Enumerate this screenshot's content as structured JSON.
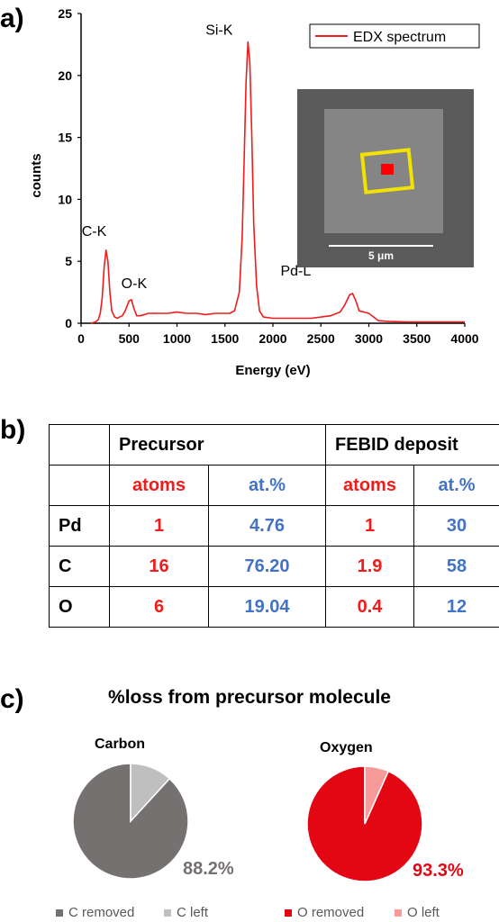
{
  "panel_labels": {
    "a": "a)",
    "b": "b)",
    "c": "c)"
  },
  "colors": {
    "red": "#ee1c1c",
    "blue": "#4472c4",
    "c_removed": "#767171",
    "c_left": "#bfbfbf",
    "o_removed": "#e30613",
    "o_left": "#f79a9a"
  },
  "chart_data": [
    {
      "type": "line",
      "xlabel": "Energy (eV)",
      "ylabel": "counts",
      "xlim": [
        0,
        4000
      ],
      "ylim": [
        0,
        25
      ],
      "x_ticks": [
        0,
        500,
        1000,
        1500,
        2000,
        2500,
        3000,
        3500,
        4000
      ],
      "y_ticks": [
        0,
        5,
        10,
        15,
        20,
        25
      ],
      "legend": "top-right",
      "series": [
        {
          "name": "EDX spectrum",
          "color": "#ee1c1c",
          "x": [
            100,
            150,
            180,
            200,
            220,
            240,
            260,
            280,
            300,
            320,
            350,
            380,
            400,
            430,
            460,
            500,
            525,
            550,
            580,
            620,
            700,
            800,
            900,
            1000,
            1100,
            1200,
            1300,
            1400,
            1500,
            1550,
            1600,
            1650,
            1680,
            1700,
            1720,
            1740,
            1760,
            1780,
            1800,
            1830,
            1860,
            1900,
            2000,
            2200,
            2400,
            2600,
            2700,
            2750,
            2800,
            2830,
            2860,
            2900,
            2950,
            3000,
            3050,
            3100,
            3200,
            3400,
            3600,
            3800,
            4000
          ],
          "y": [
            0,
            0.1,
            0.3,
            0.8,
            2.0,
            4.5,
            5.9,
            5.0,
            2.5,
            1.0,
            0.5,
            0.4,
            0.5,
            0.6,
            1.0,
            1.8,
            1.9,
            1.2,
            0.6,
            0.6,
            0.8,
            0.8,
            0.8,
            0.9,
            0.8,
            0.8,
            0.7,
            0.8,
            0.8,
            0.8,
            1.0,
            2.5,
            7.0,
            13.0,
            19.5,
            22.7,
            21.0,
            15.0,
            8.0,
            3.0,
            1.0,
            0.5,
            0.4,
            0.4,
            0.4,
            0.6,
            0.9,
            1.5,
            2.3,
            2.4,
            1.9,
            1.0,
            0.9,
            0.8,
            0.5,
            0.2,
            0.15,
            0.1,
            0.1,
            0.1,
            0.1
          ]
        }
      ],
      "annotations": [
        {
          "text": "C-K",
          "x": 277,
          "y": 5.9
        },
        {
          "text": "O-K",
          "x": 525,
          "y": 1.9
        },
        {
          "text": "Si-K",
          "x": 1740,
          "y": 22.7
        },
        {
          "text": "Pd-L",
          "x": 2830,
          "y": 2.4
        }
      ]
    },
    {
      "type": "table",
      "group_headers": [
        "Precursor",
        "FEBID deposit"
      ],
      "sub_headers": [
        "atoms",
        "at.%",
        "atoms",
        "at.%"
      ],
      "rows": [
        {
          "element": "Pd",
          "values": [
            "1",
            "4.76",
            "1",
            "30"
          ]
        },
        {
          "element": "C",
          "values": [
            "16",
            "76.20",
            "1.9",
            "58"
          ]
        },
        {
          "element": "O",
          "values": [
            "6",
            "19.04",
            "0.4",
            "12"
          ]
        }
      ]
    },
    {
      "type": "pie",
      "title": "Carbon",
      "categories": [
        "C removed",
        "C left"
      ],
      "values": [
        88.2,
        11.8
      ],
      "label": "88.2%"
    },
    {
      "type": "pie",
      "title": "Oxygen",
      "categories": [
        "O removed",
        "O left"
      ],
      "values": [
        93.3,
        6.7
      ],
      "label": "93.3%"
    }
  ],
  "inset": {
    "scale_label": "5 μm"
  },
  "section_c_title": "%loss from precursor molecule"
}
